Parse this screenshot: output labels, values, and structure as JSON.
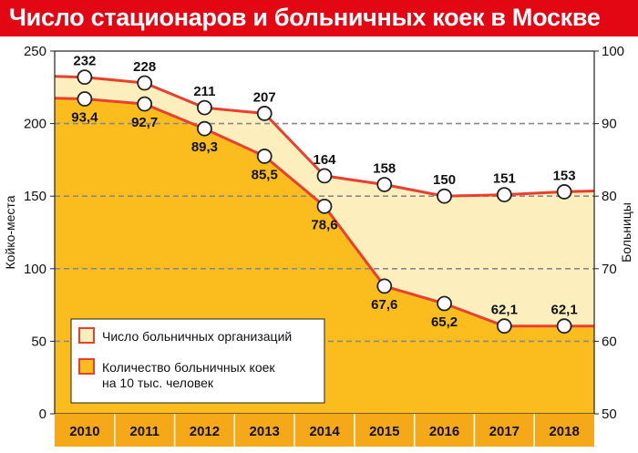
{
  "title": "Число стационаров и больничных коек в Москве",
  "colors": {
    "frame": "#e30613",
    "line": "#e8402f",
    "hospital_fill": "#fdeebd",
    "beds_fill": "#fbbd1e",
    "grid": "#888888",
    "xband": "#f6a918"
  },
  "chart_data": {
    "type": "area",
    "title": "Число стационаров и больничных коек в Москве",
    "categories": [
      "2010",
      "2011",
      "2012",
      "2013",
      "2014",
      "2015",
      "2016",
      "2017",
      "2018"
    ],
    "left_axis": {
      "label": "Койко-места",
      "ticks": [
        "0",
        "50",
        "100",
        "150",
        "200",
        "250"
      ],
      "range": [
        0,
        250
      ]
    },
    "right_axis": {
      "label": "Больницы",
      "ticks": [
        "50",
        "60",
        "70",
        "80",
        "90",
        "100"
      ],
      "range": [
        50,
        100
      ]
    },
    "grid": true,
    "legend_placement": "bottom-left",
    "series": [
      {
        "name": "Число больничных организаций",
        "axis": "left",
        "values": [
          232,
          228,
          211,
          207,
          164,
          158,
          150,
          151,
          153
        ],
        "labels": [
          "232",
          "228",
          "211",
          "207",
          "164",
          "158",
          "150",
          "151",
          "153"
        ]
      },
      {
        "name": "Количество больничных коек на 10 тыс. человек",
        "axis": "right",
        "values": [
          93.4,
          92.7,
          89.3,
          85.5,
          78.6,
          67.6,
          65.2,
          62.1,
          62.1
        ],
        "labels": [
          "93,4",
          "92,7",
          "89,3",
          "85,5",
          "78,6",
          "67,6",
          "65,2",
          "62,1",
          "62,1"
        ]
      }
    ]
  },
  "legend": [
    {
      "lines": [
        "Число больничных организаций"
      ]
    },
    {
      "lines": [
        "Количество больничных коек",
        "на 10 тыс. человек"
      ]
    }
  ]
}
